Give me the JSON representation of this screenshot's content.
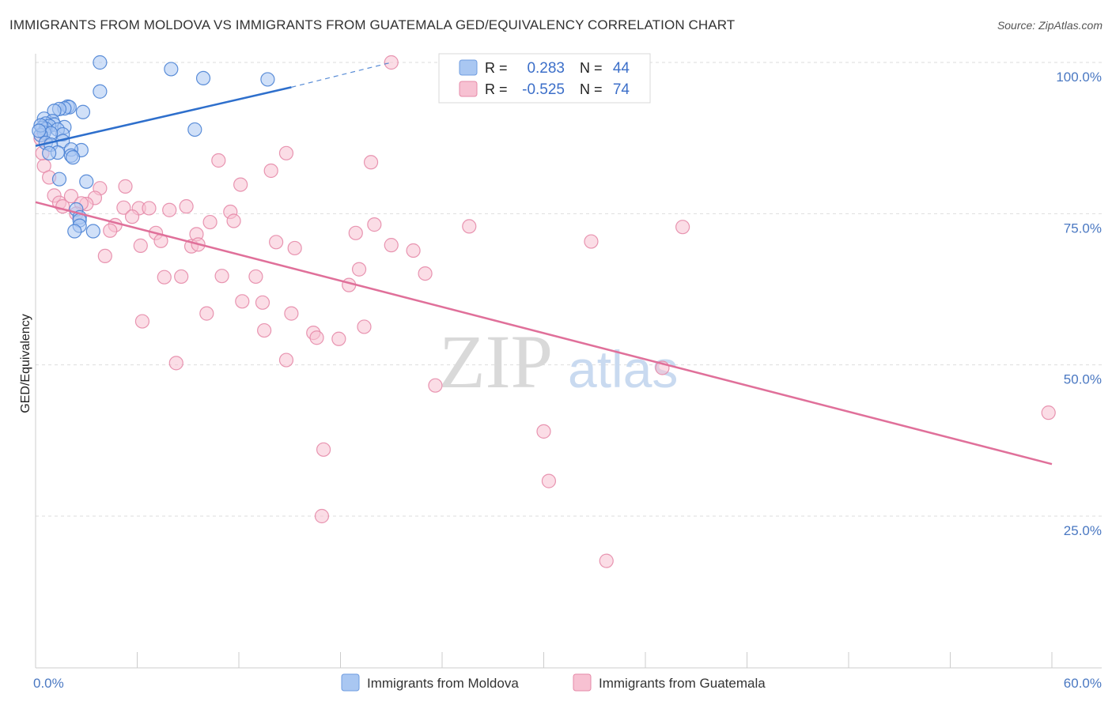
{
  "title": "IMMIGRANTS FROM MOLDOVA VS IMMIGRANTS FROM GUATEMALA GED/EQUIVALENCY CORRELATION CHART",
  "source": "Source: ZipAtlas.com",
  "watermark": {
    "zip": "ZIP",
    "atlas": "atlas"
  },
  "colors": {
    "moldova_fill": "#a9c7f2",
    "moldova_stroke": "#4a82d4",
    "moldova_line": "#2e6fcc",
    "guatemala_fill": "#f7c1d2",
    "guatemala_stroke": "#e68aa8",
    "guatemala_line": "#e0709a",
    "grid": "#dddddd",
    "axis_label": "#4a78c2"
  },
  "legend": {
    "rows": [
      {
        "r_label": "R =",
        "r_value": "0.283",
        "n_label": "N =",
        "n_value": "44"
      },
      {
        "r_label": "R =",
        "r_value": "-0.525",
        "n_label": "N =",
        "n_value": "74"
      }
    ]
  },
  "chart_data": {
    "type": "scatter",
    "title": "IMMIGRANTS FROM MOLDOVA VS IMMIGRANTS FROM GUATEMALA GED/EQUIVALENCY CORRELATION CHART",
    "ylabel": "GED/Equivalency",
    "xlabel": "",
    "xlim": [
      0,
      60
    ],
    "ylim": [
      2,
      103
    ],
    "x_tick_labels": [
      {
        "value": 0,
        "label": "0.0%"
      },
      {
        "value": 60,
        "label": "60.0%"
      }
    ],
    "y_tick_labels": [
      {
        "value": 100,
        "label": "100.0%"
      },
      {
        "value": 75,
        "label": "75.0%"
      },
      {
        "value": 50,
        "label": "50.0%"
      },
      {
        "value": 25,
        "label": "25.0%"
      }
    ],
    "x_minor_ticks": [
      0,
      6,
      12,
      18,
      24,
      30,
      36,
      42,
      48,
      54,
      60
    ],
    "legend_entries": [
      "Immigrants from Moldova",
      "Immigrants from Guatemala"
    ],
    "series": [
      {
        "name": "Immigrants from Moldova",
        "r": 0.283,
        "n": 44,
        "trend": {
          "x_start": 0,
          "y_start": 86.2,
          "x_end_solid": 15.1,
          "y_end_solid": 95.9,
          "x_end_dashed": 21.0,
          "y_end_dashed": 100.0
        },
        "points": [
          [
            3.8,
            100.0
          ],
          [
            8.0,
            98.9
          ],
          [
            9.9,
            97.4
          ],
          [
            13.7,
            97.2
          ],
          [
            3.8,
            95.2
          ],
          [
            1.9,
            92.7
          ],
          [
            2.0,
            92.6
          ],
          [
            1.7,
            92.4
          ],
          [
            1.4,
            92.3
          ],
          [
            1.1,
            92.0
          ],
          [
            2.8,
            91.8
          ],
          [
            0.5,
            90.7
          ],
          [
            1.0,
            90.3
          ],
          [
            0.6,
            89.9
          ],
          [
            1.1,
            89.7
          ],
          [
            0.8,
            89.5
          ],
          [
            1.7,
            89.3
          ],
          [
            0.4,
            89.2
          ],
          [
            0.6,
            89.0
          ],
          [
            1.3,
            88.9
          ],
          [
            0.5,
            88.4
          ],
          [
            1.6,
            88.1
          ],
          [
            0.9,
            88.3
          ],
          [
            0.3,
            88.0
          ],
          [
            9.4,
            88.9
          ],
          [
            1.6,
            87.0
          ],
          [
            0.6,
            86.7
          ],
          [
            0.9,
            86.4
          ],
          [
            2.7,
            85.5
          ],
          [
            2.1,
            85.6
          ],
          [
            1.3,
            85.1
          ],
          [
            0.8,
            85.0
          ],
          [
            2.1,
            84.6
          ],
          [
            2.2,
            84.3
          ],
          [
            1.4,
            80.7
          ],
          [
            3.0,
            80.3
          ],
          [
            2.4,
            75.7
          ],
          [
            2.6,
            74.4
          ],
          [
            2.6,
            73.9
          ],
          [
            2.6,
            73.0
          ],
          [
            2.3,
            72.1
          ],
          [
            3.4,
            72.1
          ],
          [
            0.3,
            89.6
          ],
          [
            0.2,
            88.7
          ]
        ]
      },
      {
        "name": "Immigrants from Guatemala",
        "r": -0.525,
        "n": 74,
        "trend": {
          "x_start": 0,
          "y_start": 76.9,
          "x_end": 60,
          "y_end": 33.6
        },
        "points": [
          [
            21.0,
            100.0
          ],
          [
            14.8,
            85.0
          ],
          [
            10.8,
            83.8
          ],
          [
            19.8,
            83.5
          ],
          [
            13.9,
            82.1
          ],
          [
            0.5,
            82.9
          ],
          [
            0.4,
            85.0
          ],
          [
            0.8,
            81.0
          ],
          [
            5.3,
            79.5
          ],
          [
            12.1,
            79.8
          ],
          [
            3.8,
            79.2
          ],
          [
            1.1,
            78.0
          ],
          [
            2.1,
            77.9
          ],
          [
            3.5,
            77.6
          ],
          [
            1.4,
            76.8
          ],
          [
            1.6,
            76.2
          ],
          [
            3.0,
            76.6
          ],
          [
            2.7,
            76.7
          ],
          [
            8.9,
            76.2
          ],
          [
            5.2,
            76.0
          ],
          [
            6.1,
            75.9
          ],
          [
            7.9,
            75.6
          ],
          [
            6.7,
            75.9
          ],
          [
            11.5,
            75.3
          ],
          [
            2.4,
            75.0
          ],
          [
            5.7,
            74.5
          ],
          [
            11.7,
            73.8
          ],
          [
            10.3,
            73.6
          ],
          [
            4.7,
            73.1
          ],
          [
            4.4,
            72.2
          ],
          [
            7.1,
            71.8
          ],
          [
            9.5,
            71.6
          ],
          [
            18.9,
            71.8
          ],
          [
            20.0,
            73.2
          ],
          [
            25.6,
            72.9
          ],
          [
            38.2,
            72.8
          ],
          [
            7.4,
            70.5
          ],
          [
            14.2,
            70.3
          ],
          [
            9.2,
            69.6
          ],
          [
            6.2,
            69.7
          ],
          [
            9.6,
            69.9
          ],
          [
            15.3,
            69.3
          ],
          [
            21.0,
            69.8
          ],
          [
            22.3,
            68.9
          ],
          [
            4.1,
            68.0
          ],
          [
            32.8,
            70.4
          ],
          [
            19.1,
            65.8
          ],
          [
            23.0,
            65.1
          ],
          [
            7.6,
            64.5
          ],
          [
            8.6,
            64.6
          ],
          [
            11.0,
            64.7
          ],
          [
            13.0,
            64.6
          ],
          [
            18.5,
            63.2
          ],
          [
            12.2,
            60.5
          ],
          [
            13.4,
            60.3
          ],
          [
            10.1,
            58.5
          ],
          [
            15.1,
            58.5
          ],
          [
            6.3,
            57.2
          ],
          [
            13.5,
            55.7
          ],
          [
            16.4,
            55.3
          ],
          [
            16.6,
            54.5
          ],
          [
            17.9,
            54.3
          ],
          [
            19.4,
            56.3
          ],
          [
            14.8,
            50.8
          ],
          [
            8.3,
            50.3
          ],
          [
            37.0,
            49.5
          ],
          [
            23.6,
            46.6
          ],
          [
            30.0,
            39.0
          ],
          [
            59.8,
            42.1
          ],
          [
            17.0,
            36.0
          ],
          [
            30.3,
            30.8
          ],
          [
            16.9,
            25.0
          ],
          [
            33.7,
            17.6
          ],
          [
            0.3,
            87.4
          ]
        ]
      }
    ]
  }
}
